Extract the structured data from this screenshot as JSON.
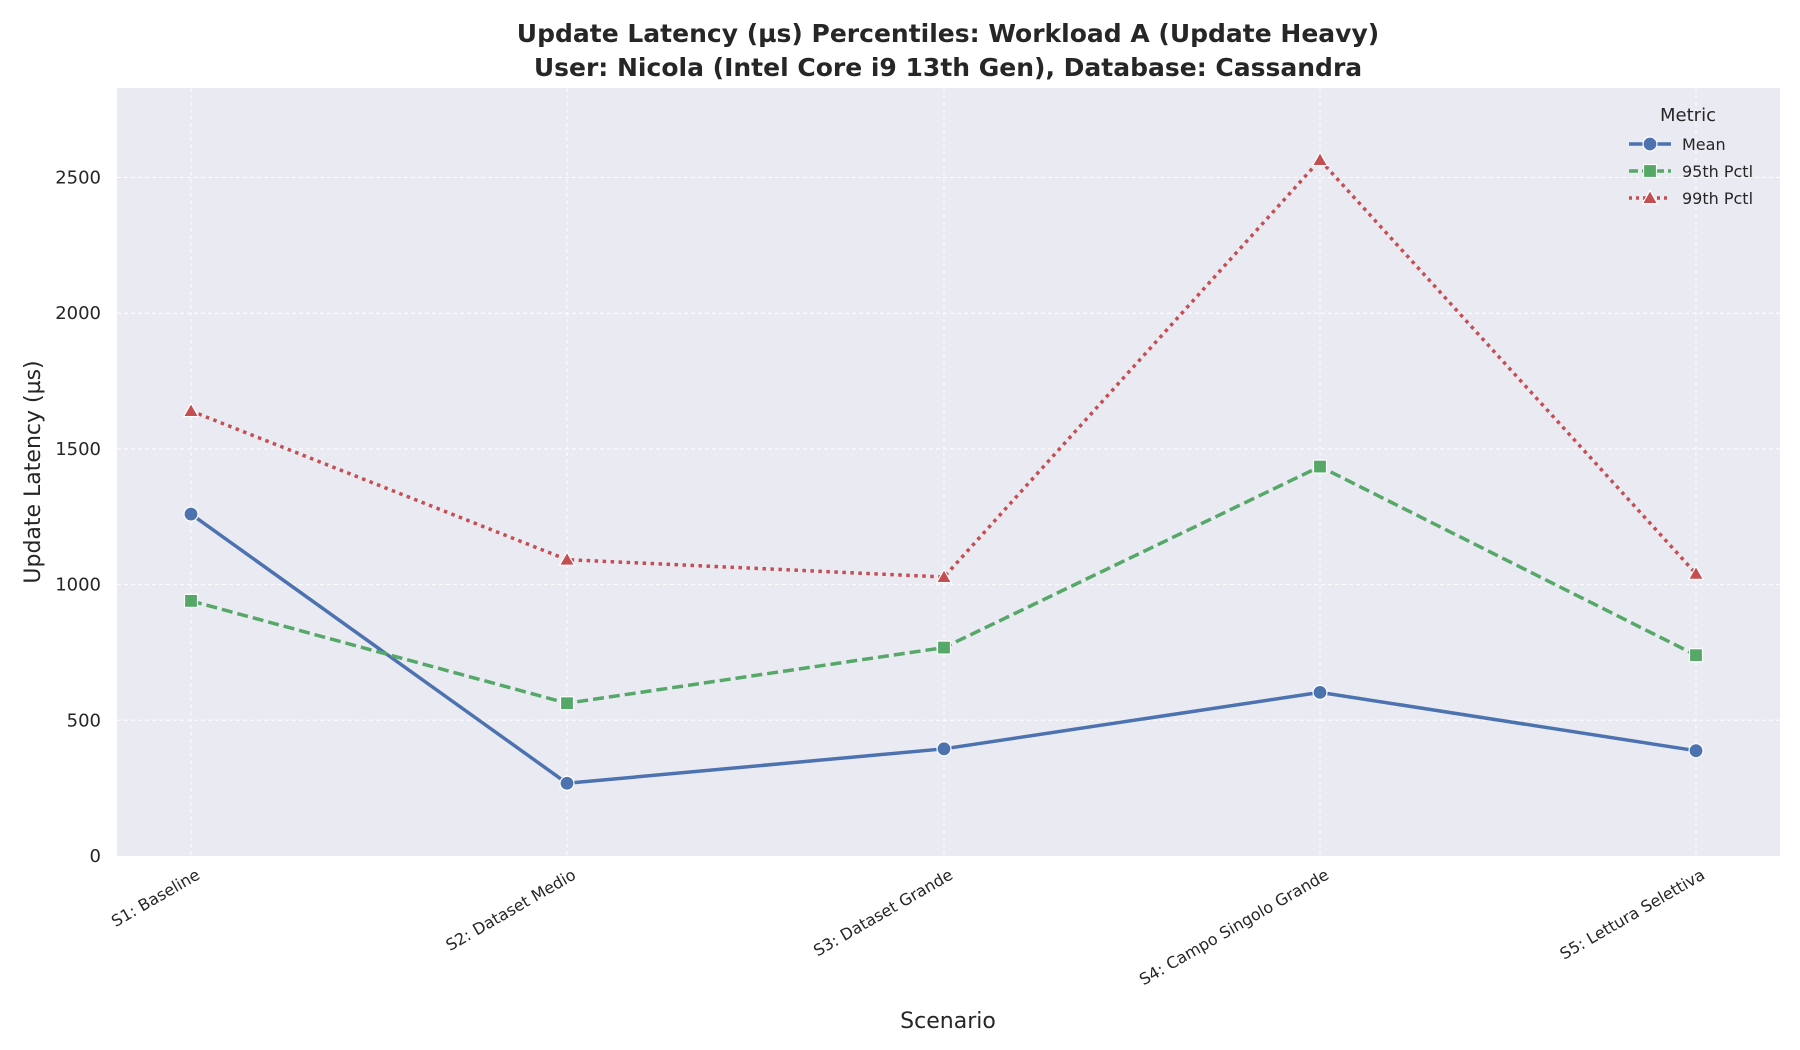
{
  "chart_data": {
    "type": "line",
    "title_lines": [
      "Update Latency (µs) Percentiles: Workload A (Update Heavy)",
      "User: Nicola (Intel Core i9 13th Gen), Database: Cassandra"
    ],
    "xlabel": "Scenario",
    "ylabel": "Update Latency (µs)",
    "categories": [
      "S1: Baseline",
      "S2: Dataset Medio",
      "S3: Dataset Grande",
      "S4: Campo Singolo Grande",
      "S5: Lettura Selettiva"
    ],
    "ylim": [
      0,
      2830
    ],
    "yticks": [
      0,
      500,
      1000,
      1500,
      2000,
      2500
    ],
    "grid": true,
    "legend_title": "Metric",
    "legend_position": "top-right",
    "series": [
      {
        "name": "Mean",
        "values": [
          1260,
          268,
          395,
          603,
          388
        ],
        "color": "#4c72b0",
        "marker": "circle",
        "dash": "solid"
      },
      {
        "name": "95th Pctl",
        "values": [
          940,
          563,
          768,
          1435,
          740
        ],
        "color": "#55a868",
        "marker": "square",
        "dash": "dashed"
      },
      {
        "name": "99th Pctl",
        "values": [
          1640,
          1092,
          1028,
          2565,
          1040
        ],
        "color": "#c44e52",
        "marker": "triangle",
        "dash": "dotted"
      }
    ]
  }
}
